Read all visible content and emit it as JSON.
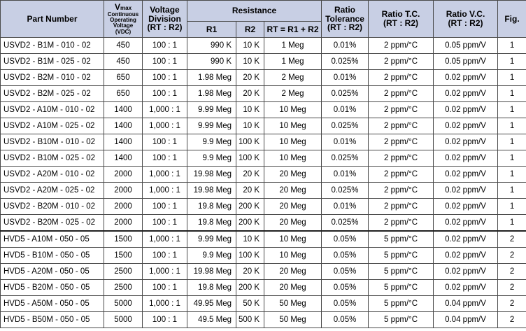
{
  "header": {
    "part_number": "Part Number",
    "vmax_main": "V",
    "vmax_sub": "max",
    "vmax_line1": "Continuous",
    "vmax_line2": "Operating",
    "vmax_line3": "Voltage",
    "vmax_line4": "(VDC)",
    "voltage_division_line1": "Voltage",
    "voltage_division_line2": "Division",
    "voltage_division_line3": "(RT : R2)",
    "resistance": "Resistance",
    "r1": "R1",
    "r2": "R2",
    "rt": "RT = R1 + R2",
    "ratio_tolerance_line1": "Ratio",
    "ratio_tolerance_line2": "Tolerance",
    "ratio_tolerance_line3": "(RT : R2)",
    "ratio_tc_line1": "Ratio T.C.",
    "ratio_tc_line2": "(RT : R2)",
    "ratio_vc_line1": "Ratio V.C.",
    "ratio_vc_line2": "(RT : R2)",
    "fig": "Fig."
  },
  "rows": [
    {
      "part": "USVD2 - B1M - 010 - 02",
      "vmax": "450",
      "div": "100 : 1",
      "r1": "990 K",
      "r2": "10 K",
      "rt": "1 Meg",
      "tol": "0.01%",
      "tc": "2 ppm/°C",
      "vc": "0.05  ppm/V",
      "fig": "1"
    },
    {
      "part": "USVD2 - B1M - 025 - 02",
      "vmax": "450",
      "div": "100 : 1",
      "r1": "990 K",
      "r2": "10 K",
      "rt": "1 Meg",
      "tol": "0.025%",
      "tc": "2 ppm/°C",
      "vc": "0.05  ppm/V",
      "fig": "1"
    },
    {
      "part": "USVD2 - B2M - 010 - 02",
      "vmax": "650",
      "div": "100 : 1",
      "r1": "1.98 Meg",
      "r2": "20 K",
      "rt": "2 Meg",
      "tol": "0.01%",
      "tc": "2 ppm/°C",
      "vc": "0.02  ppm/V",
      "fig": "1"
    },
    {
      "part": "USVD2 - B2M - 025 - 02",
      "vmax": "650",
      "div": "100 : 1",
      "r1": "1.98 Meg",
      "r2": "20 K",
      "rt": "2 Meg",
      "tol": "0.025%",
      "tc": "2 ppm/°C",
      "vc": "0.02  ppm/V",
      "fig": "1"
    },
    {
      "part": "USVD2 - A10M - 010 - 02",
      "vmax": "1400",
      "div": "1,000 : 1",
      "r1": "9.99 Meg",
      "r2": "10 K",
      "rt": "10 Meg",
      "tol": "0.01%",
      "tc": "2 ppm/°C",
      "vc": "0.02  ppm/V",
      "fig": "1"
    },
    {
      "part": "USVD2 - A10M - 025 - 02",
      "vmax": "1400",
      "div": "1,000 : 1",
      "r1": "9.99 Meg",
      "r2": "10 K",
      "rt": "10 Meg",
      "tol": "0.025%",
      "tc": "2 ppm/°C",
      "vc": "0.02  ppm/V",
      "fig": "1"
    },
    {
      "part": "USVD2 - B10M - 010 - 02",
      "vmax": "1400",
      "div": "100 : 1",
      "r1": "9.9 Meg",
      "r2": "100 K",
      "rt": "10 Meg",
      "tol": "0.01%",
      "tc": "2 ppm/°C",
      "vc": "0.02  ppm/V",
      "fig": "1"
    },
    {
      "part": "USVD2 - B10M - 025 - 02",
      "vmax": "1400",
      "div": "100 : 1",
      "r1": "9.9 Meg",
      "r2": "100 K",
      "rt": "10 Meg",
      "tol": "0.025%",
      "tc": "2 ppm/°C",
      "vc": "0.02  ppm/V",
      "fig": "1"
    },
    {
      "part": "USVD2 - A20M - 010 - 02",
      "vmax": "2000",
      "div": "1,000 : 1",
      "r1": "19.98 Meg",
      "r2": "20 K",
      "rt": "20 Meg",
      "tol": "0.01%",
      "tc": "2 ppm/°C",
      "vc": "0.02  ppm/V",
      "fig": "1"
    },
    {
      "part": "USVD2 - A20M - 025 - 02",
      "vmax": "2000",
      "div": "1,000 : 1",
      "r1": "19.98 Meg",
      "r2": "20 K",
      "rt": "20 Meg",
      "tol": "0.025%",
      "tc": "2 ppm/°C",
      "vc": "0.02  ppm/V",
      "fig": "1"
    },
    {
      "part": "USVD2 - B20M - 010 - 02",
      "vmax": "2000",
      "div": "100 : 1",
      "r1": "19.8 Meg",
      "r2": "200 K",
      "rt": "20 Meg",
      "tol": "0.01%",
      "tc": "2 ppm/°C",
      "vc": "0.02  ppm/V",
      "fig": "1"
    },
    {
      "part": "USVD2 - B20M - 025 - 02",
      "vmax": "2000",
      "div": "100 : 1",
      "r1": "19.8 Meg",
      "r2": "200 K",
      "rt": "20 Meg",
      "tol": "0.025%",
      "tc": "2 ppm/°C",
      "vc": "0.02  ppm/V",
      "fig": "1"
    },
    {
      "part": "HVD5 - A10M - 050 - 05",
      "vmax": "1500",
      "div": "1,000 : 1",
      "r1": "9.99 Meg",
      "r2": "10 K",
      "rt": "10 Meg",
      "tol": "0.05%",
      "tc": "5 ppm/°C",
      "vc": "0.02 ppm/V",
      "fig": "2"
    },
    {
      "part": "HVD5 - B10M - 050 - 05",
      "vmax": "1500",
      "div": "100 : 1",
      "r1": "9.9 Meg",
      "r2": "100 K",
      "rt": "10 Meg",
      "tol": "0.05%",
      "tc": "5 ppm/°C",
      "vc": "0.02 ppm/V",
      "fig": "2"
    },
    {
      "part": "HVD5 - A20M - 050 - 05",
      "vmax": "2500",
      "div": "1,000 : 1",
      "r1": "19.98 Meg",
      "r2": "20 K",
      "rt": "20 Meg",
      "tol": "0.05%",
      "tc": "5 ppm/°C",
      "vc": "0.02 ppm/V",
      "fig": "2"
    },
    {
      "part": "HVD5 - B20M - 050 - 05",
      "vmax": "2500",
      "div": "100 : 1",
      "r1": "19.8 Meg",
      "r2": "200 K",
      "rt": "20 Meg",
      "tol": "0.05%",
      "tc": "5 ppm/°C",
      "vc": "0.02 ppm/V",
      "fig": "2"
    },
    {
      "part": "HVD5 - A50M - 050 - 05",
      "vmax": "5000",
      "div": "1,000 : 1",
      "r1": "49.95 Meg",
      "r2": "50 K",
      "rt": "50 Meg",
      "tol": "0.05%",
      "tc": "5 ppm/°C",
      "vc": "0.04 ppm/V",
      "fig": "2"
    },
    {
      "part": "HVD5 - B50M - 050 - 05",
      "vmax": "5000",
      "div": "100 : 1",
      "r1": "49.5 Meg",
      "r2": "500 K",
      "rt": "50 Meg",
      "tol": "0.05%",
      "tc": "5 ppm/°C",
      "vc": "0.04 ppm/V",
      "fig": "2"
    }
  ],
  "colors": {
    "header_bg": "#c8cfe4",
    "border": "#4a4a4a"
  }
}
